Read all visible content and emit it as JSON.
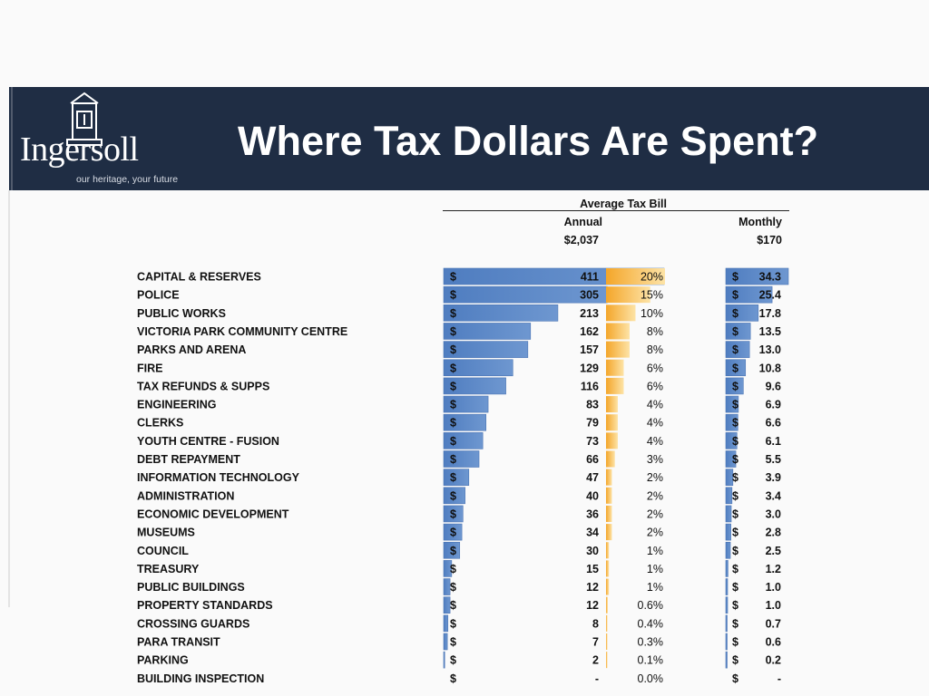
{
  "header": {
    "title": "Where Tax Dollars Are Spent?",
    "logo_text": "Ingersoll",
    "logo_tagline": "our heritage, your future"
  },
  "table_header": {
    "group": "Average Tax Bill",
    "annual_label": "Annual",
    "monthly_label": "Monthly",
    "annual_total": "$2,037",
    "monthly_total": "$170"
  },
  "colors": {
    "banner": "#1f2d44",
    "bar_blue": "#5b87c5",
    "bar_orange": "#f6bb4a"
  },
  "chart_data": {
    "type": "table",
    "categories": [
      "CAPITAL & RESERVES",
      "POLICE",
      "PUBLIC WORKS",
      "VICTORIA PARK COMMUNITY CENTRE",
      "PARKS AND ARENA",
      "FIRE",
      "TAX REFUNDS & SUPPS",
      "ENGINEERING",
      "CLERKS",
      "YOUTH CENTRE - FUSION",
      "DEBT REPAYMENT",
      "INFORMATION TECHNOLOGY",
      "ADMINISTRATION",
      "ECONOMIC DEVELOPMENT",
      "MUSEUMS",
      "COUNCIL",
      "TREASURY",
      "PUBLIC BUILDINGS",
      "PROPERTY STANDARDS",
      "CROSSING GUARDS",
      "PARA TRANSIT",
      "PARKING",
      "BUILDING INSPECTION"
    ],
    "currency_symbol": "$",
    "annual": [
      411,
      305,
      213,
      162,
      157,
      129,
      116,
      83,
      79,
      73,
      66,
      47,
      40,
      36,
      34,
      30,
      15,
      12,
      12,
      8,
      7,
      2,
      0
    ],
    "annual_labels": [
      "411",
      "305",
      "213",
      "162",
      "157",
      "129",
      "116",
      "83",
      "79",
      "73",
      "66",
      "47",
      "40",
      "36",
      "34",
      "30",
      "15",
      "12",
      "12",
      "8",
      "7",
      "2",
      "-"
    ],
    "percent": [
      20,
      15,
      10,
      8,
      8,
      6,
      6,
      4,
      4,
      4,
      3,
      2,
      2,
      2,
      2,
      1,
      1,
      1,
      0.6,
      0.4,
      0.3,
      0.1,
      0
    ],
    "percent_labels": [
      "20%",
      "15%",
      "10%",
      "8%",
      "8%",
      "6%",
      "6%",
      "4%",
      "4%",
      "4%",
      "3%",
      "2%",
      "2%",
      "2%",
      "2%",
      "1%",
      "1%",
      "1%",
      "0.6%",
      "0.4%",
      "0.3%",
      "0.1%",
      "0.0%"
    ],
    "monthly": [
      34.3,
      25.4,
      17.8,
      13.5,
      13.0,
      10.8,
      9.6,
      6.9,
      6.6,
      6.1,
      5.5,
      3.9,
      3.4,
      3.0,
      2.8,
      2.5,
      1.2,
      1.0,
      1.0,
      0.7,
      0.6,
      0.2,
      0
    ],
    "monthly_labels": [
      "34.3",
      "25.4",
      "17.8",
      "13.5",
      "13.0",
      "10.8",
      "9.6",
      "6.9",
      "6.6",
      "6.1",
      "5.5",
      "3.9",
      "3.4",
      "3.0",
      "2.8",
      "2.5",
      "1.2",
      "1.0",
      "1.0",
      "0.7",
      "0.6",
      "0.2",
      "-"
    ]
  }
}
